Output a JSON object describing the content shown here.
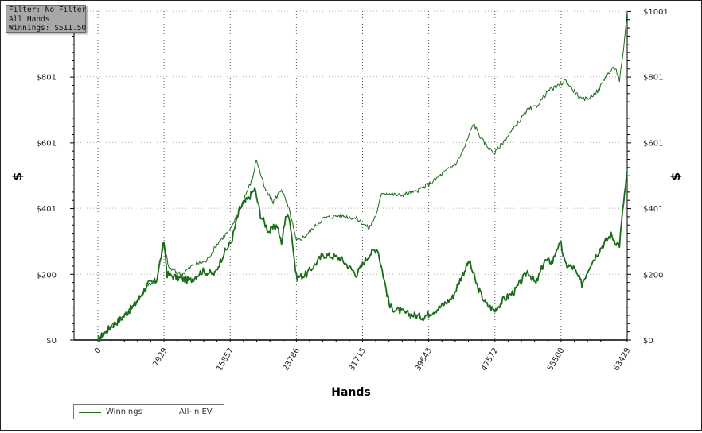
{
  "filter_box": {
    "filter": "Filter: No Filter",
    "hands": "All Hands",
    "winnings": "Winnings: $511.50"
  },
  "colors": {
    "series": "#1a6b1a",
    "grid": "#b0b0b0",
    "axis": "#000000"
  },
  "chart_data": {
    "type": "line",
    "xlabel": "Hands",
    "ylabel_left": "$",
    "ylabel_right": "$",
    "xlim": [
      0,
      63429
    ],
    "ylim": [
      0,
      1001
    ],
    "xticks": [
      "0",
      "7929",
      "15857",
      "23786",
      "31715",
      "39643",
      "47572",
      "55500",
      "63429"
    ],
    "yticks_left": [
      "$0",
      "$200",
      "$401",
      "$601",
      "$801"
    ],
    "yticks_right": [
      "$0",
      "$200",
      "$401",
      "$601",
      "$801",
      "$1001"
    ],
    "grid": true,
    "legend_position": "bottom-left",
    "series": [
      {
        "name": "Winnings",
        "x": [
          0,
          1500,
          3000,
          4500,
          6000,
          7000,
          7929,
          8300,
          9500,
          11000,
          12500,
          14000,
          15000,
          16000,
          17000,
          18000,
          18800,
          19500,
          20500,
          21500,
          22000,
          22500,
          23000,
          23786,
          25000,
          27000,
          29000,
          31000,
          31715,
          32500,
          33500,
          35000,
          37000,
          39000,
          39643,
          41000,
          42500,
          43500,
          44500,
          45500,
          46500,
          47000,
          47572,
          48500,
          50000,
          51500,
          52500,
          53500,
          54500,
          55000,
          55500,
          56000,
          57000,
          58000,
          59000,
          60000,
          60800,
          61500,
          62000,
          62500,
          63000,
          63429
        ],
        "values": [
          0,
          40,
          70,
          110,
          170,
          180,
          300,
          200,
          190,
          180,
          210,
          200,
          260,
          300,
          400,
          430,
          460,
          380,
          330,
          350,
          290,
          380,
          370,
          190,
          200,
          260,
          250,
          200,
          230,
          260,
          280,
          100,
          80,
          70,
          80,
          100,
          130,
          190,
          240,
          160,
          110,
          100,
          90,
          120,
          150,
          210,
          170,
          240,
          240,
          280,
          290,
          230,
          220,
          170,
          230,
          270,
          300,
          320,
          300,
          290,
          420,
          511.5
        ]
      },
      {
        "name": "All-In EV",
        "x": [
          0,
          1500,
          3000,
          4500,
          6000,
          7000,
          7929,
          8500,
          10000,
          11500,
          13000,
          14500,
          16000,
          17500,
          18500,
          19000,
          20000,
          21000,
          22000,
          23000,
          23786,
          25000,
          27000,
          29000,
          31000,
          32500,
          33500,
          34000,
          36000,
          38000,
          40000,
          42000,
          43000,
          44000,
          45000,
          46000,
          47000,
          47572,
          48500,
          50000,
          51500,
          52500,
          54000,
          55000,
          56000,
          57000,
          58000,
          59000,
          60000,
          60800,
          61500,
          62000,
          62500,
          63000,
          63429
        ],
        "values": [
          0,
          40,
          70,
          110,
          170,
          180,
          290,
          220,
          200,
          230,
          240,
          300,
          340,
          430,
          490,
          550,
          460,
          420,
          460,
          390,
          300,
          320,
          370,
          380,
          370,
          340,
          390,
          450,
          440,
          450,
          480,
          520,
          540,
          590,
          660,
          610,
          580,
          570,
          600,
          650,
          700,
          710,
          760,
          770,
          790,
          760,
          730,
          740,
          760,
          800,
          820,
          830,
          790,
          880,
          1001
        ]
      }
    ]
  }
}
